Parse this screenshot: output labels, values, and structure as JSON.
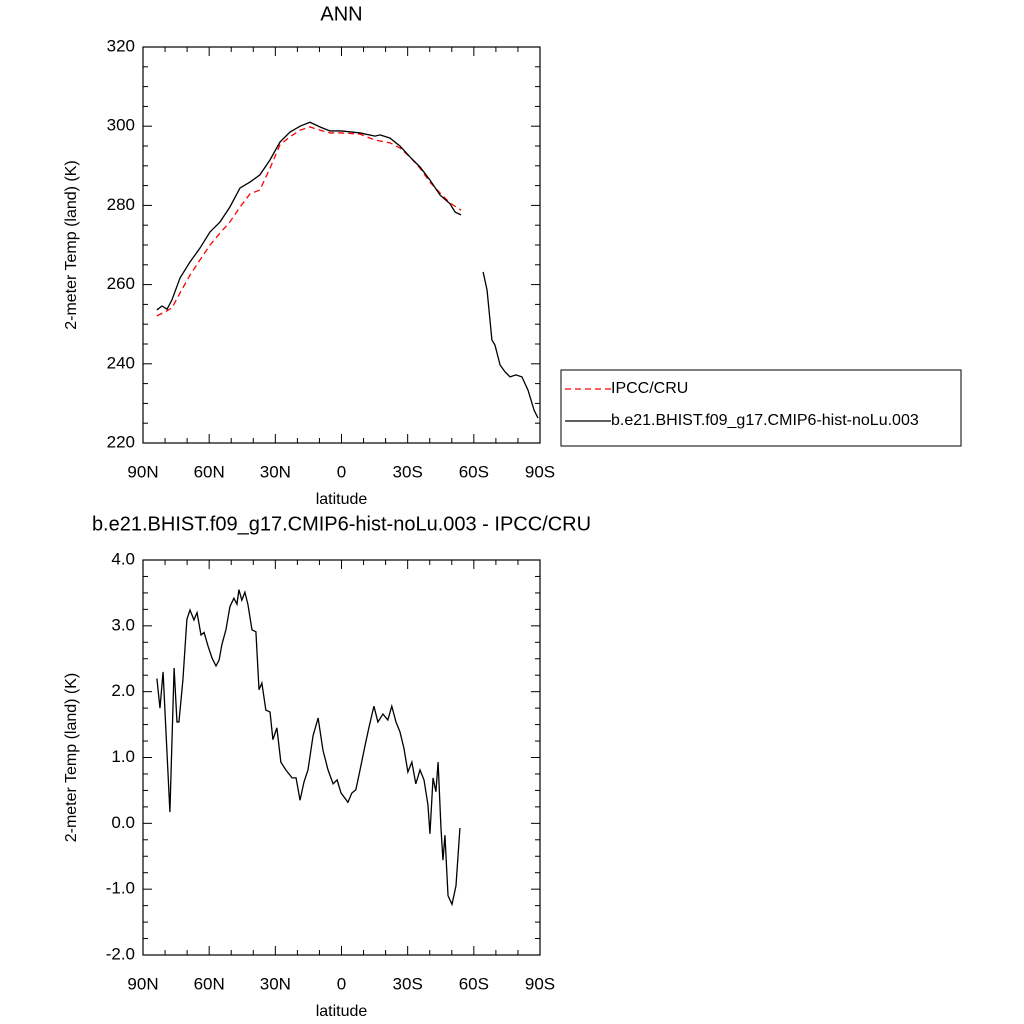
{
  "chart_data": [
    {
      "type": "line",
      "title": "ANN",
      "x_label": "latitude",
      "y_label": "2-meter Temp (land) (K)",
      "xlim": [
        90,
        -90
      ],
      "xticks": [
        {
          "value": 90,
          "label": "90N"
        },
        {
          "value": 60,
          "label": "60N"
        },
        {
          "value": 30,
          "label": "30N"
        },
        0,
        {
          "value": -30,
          "label": "30S"
        },
        {
          "value": -60,
          "label": "60S"
        },
        {
          "value": -90,
          "label": "90S"
        }
      ],
      "ylim": [
        220,
        320
      ],
      "yticks": [
        220,
        240,
        260,
        280,
        300,
        320
      ],
      "legend": "right",
      "series": [
        {
          "name": "IPCC/CRU",
          "color": "#ff0000",
          "line_style": "dashed",
          "x": [
            83.7,
            80.0,
            76.9,
            73.2,
            68.7,
            64.2,
            59.6,
            55.1,
            50.6,
            46.0,
            41.5,
            37.0,
            32.4,
            27.9,
            23.4,
            18.8,
            14.3,
            9.7,
            5.2,
            0,
            -8.4,
            -15.2,
            -22.0,
            -26.5,
            -31.1,
            -35.6,
            -40.1,
            -44.7,
            -49.2,
            -54.2
          ],
          "values": [
            252.1,
            253.1,
            254.1,
            257.9,
            262.4,
            266.2,
            270,
            273,
            275.8,
            279.6,
            282.9,
            283.9,
            289.4,
            295.3,
            297.3,
            299,
            299.8,
            299,
            298.3,
            298.3,
            298,
            296.5,
            295.8,
            294.5,
            292.2,
            289.4,
            285.9,
            283.1,
            280.6,
            278.8
          ]
        },
        {
          "name": "b.e21.BHIST.f09_g17.CMIP6-hist-noLu.003",
          "color": "#000000",
          "line_style": "solid",
          "x": [
            83.7,
            81.4,
            79.1,
            76.9,
            73.2,
            68.7,
            64.2,
            59.6,
            55.1,
            50.6,
            46.0,
            41.5,
            37.0,
            32.4,
            27.9,
            23.4,
            18.8,
            14.3,
            9.7,
            5.2,
            0,
            -8.4,
            -15.2,
            -17.5,
            -22.0,
            -26.5,
            -31.1,
            -35.6,
            -40.1,
            -44.7,
            -49.2,
            -51.5,
            -54.2,
            -59.2,
            -64.2,
            -66.0,
            -68.2,
            -69.6,
            -71.9,
            -74.1,
            -76.4,
            -79.1,
            -81.8,
            -84.6,
            -87.3,
            -89.1
          ],
          "values": [
            253.6,
            254.6,
            253.8,
            256.1,
            261.7,
            265.7,
            269.2,
            273.3,
            275.8,
            279.6,
            284.4,
            285.9,
            287.7,
            291.5,
            296,
            298.5,
            300,
            301,
            299.8,
            298.8,
            298.8,
            298.3,
            297.5,
            297.8,
            297,
            295,
            292.2,
            289.7,
            286.4,
            282.6,
            280.4,
            278.3,
            277.6,
            null,
            263.2,
            258.6,
            246,
            244.7,
            239.7,
            238,
            236.7,
            237.2,
            236.7,
            233.3,
            228.3,
            226.3
          ]
        }
      ]
    },
    {
      "type": "line",
      "title": "b.e21.BHIST.f09_g17.CMIP6-hist-noLu.003 - IPCC/CRU",
      "x_label": "latitude",
      "y_label": "2-meter Temp (land) (K)",
      "xlim": [
        90,
        -90
      ],
      "xticks": [
        {
          "value": 90,
          "label": "90N"
        },
        {
          "value": 60,
          "label": "60N"
        },
        {
          "value": 30,
          "label": "30N"
        },
        0,
        {
          "value": -30,
          "label": "30S"
        },
        {
          "value": -60,
          "label": "60S"
        },
        {
          "value": -90,
          "label": "90S"
        }
      ],
      "ylim": [
        -2,
        4
      ],
      "yticks": [
        {
          "value": -2,
          "label": "-2.0"
        },
        {
          "value": -1,
          "label": "-1.0"
        },
        {
          "value": 0,
          "label": "0.0"
        },
        {
          "value": 1,
          "label": "1.0"
        },
        {
          "value": 2,
          "label": "2.0"
        },
        {
          "value": 3,
          "label": "3.0"
        },
        {
          "value": 4,
          "label": "4.0"
        }
      ],
      "series": [
        {
          "color": "#000000",
          "line_style": "solid",
          "x": [
            83.7,
            82.3,
            80.9,
            79.6,
            77.8,
            75.9,
            74.6,
            73.7,
            71.9,
            70.1,
            68.7,
            66.9,
            65.5,
            63.7,
            62.3,
            60.5,
            58.7,
            56.9,
            55.5,
            54.2,
            52.4,
            50.6,
            48.8,
            47.4,
            46.5,
            45.2,
            43.8,
            42.4,
            40.6,
            38.8,
            37.4,
            36.1,
            34.3,
            32.4,
            31.1,
            29.3,
            27.5,
            25.2,
            22.4,
            20.6,
            18.8,
            17.0,
            15.2,
            12.9,
            10.6,
            8.4,
            6.1,
            3.8,
            2.0,
            0.2,
            -1.6,
            -2.9,
            -4.7,
            -6.5,
            -8.4,
            -10.6,
            -12.4,
            -14.7,
            -16.5,
            -18.8,
            -21.0,
            -22.8,
            -24.7,
            -26.5,
            -28.3,
            -30.1,
            -31.9,
            -33.7,
            -35.6,
            -37.4,
            -39.2,
            -40.1,
            -41.5,
            -42.8,
            -43.8,
            -45.1,
            -46.0,
            -46.9,
            -48.3,
            -50.1,
            -51.9,
            -53.7
          ],
          "values": [
            2.2,
            1.75,
            2.3,
            1.4,
            0.17,
            2.36,
            1.54,
            1.54,
            2.18,
            3.1,
            3.24,
            3.09,
            3.2,
            2.86,
            2.9,
            2.69,
            2.51,
            2.39,
            2.48,
            2.72,
            2.94,
            3.29,
            3.42,
            3.33,
            3.55,
            3.39,
            3.51,
            3.32,
            2.94,
            2.91,
            2.03,
            2.13,
            1.72,
            1.69,
            1.27,
            1.45,
            0.93,
            0.81,
            0.69,
            0.69,
            0.35,
            0.63,
            0.81,
            1.33,
            1.6,
            1.11,
            0.81,
            0.6,
            0.66,
            0.46,
            0.38,
            0.32,
            0.46,
            0.51,
            0.81,
            1.17,
            1.45,
            1.78,
            1.54,
            1.66,
            1.57,
            1.78,
            1.54,
            1.39,
            1.14,
            0.78,
            0.93,
            0.6,
            0.81,
            0.66,
            0.28,
            -0.16,
            0.69,
            0.48,
            0.93,
            -0.07,
            -0.56,
            -0.18,
            -1.1,
            -1.23,
            -0.95,
            -0.07
          ]
        }
      ]
    }
  ]
}
